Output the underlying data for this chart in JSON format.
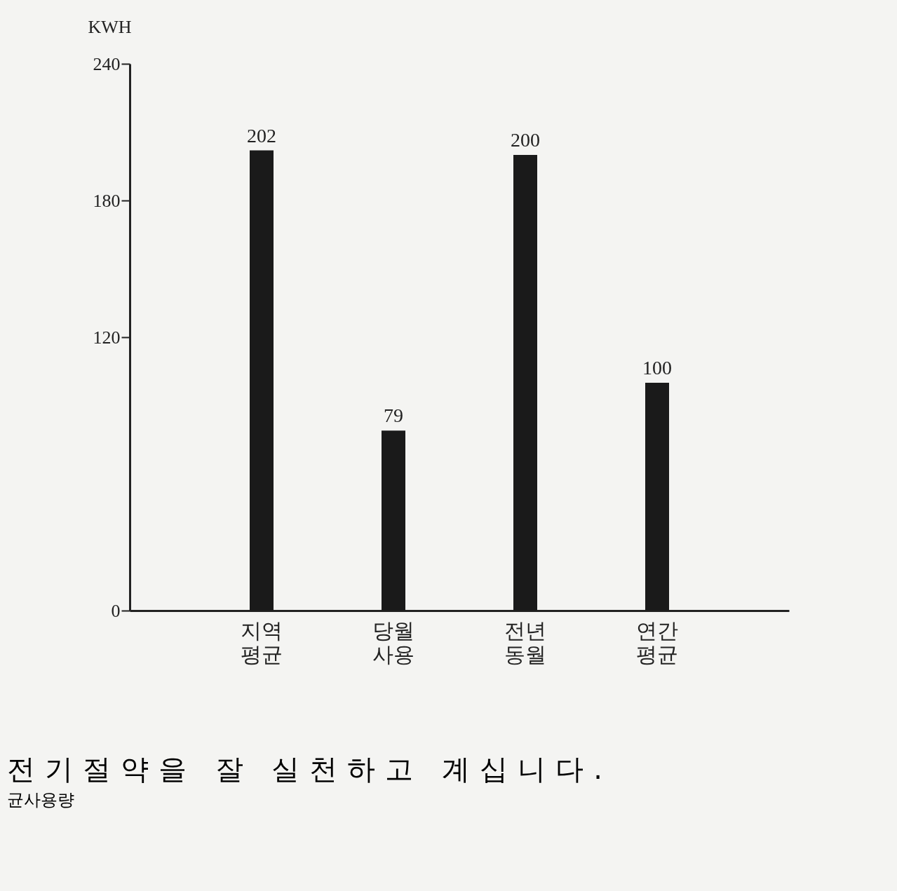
{
  "chart_data": {
    "type": "bar",
    "ylabel": "KWH",
    "categories": [
      "지역 평균",
      "당월 사용",
      "전년 동월",
      "연간 평균"
    ],
    "values": [
      202,
      79,
      200,
      100
    ],
    "color": "#1a1a1a",
    "ylim": [
      0,
      240
    ],
    "yticks": [
      0,
      120,
      180,
      240
    ],
    "grid": false,
    "data_labels": true,
    "annotations": [
      "전기절약을 잘 실천하고 계십니다.",
      "균사용량"
    ]
  }
}
